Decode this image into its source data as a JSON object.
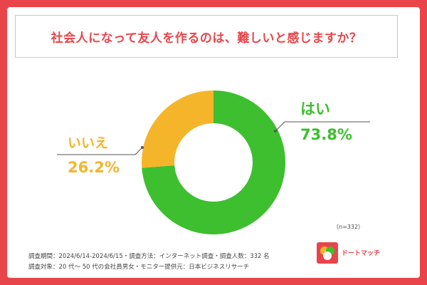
{
  "title": "社会人になって友人を作るのは、難しいと感じますか？",
  "chart_data": {
    "type": "pie",
    "donut": true,
    "slices": [
      {
        "label": "はい",
        "value": 73.8,
        "value_text": "73.8%",
        "color": "#3dbf2f"
      },
      {
        "label": "いいえ",
        "value": 26.2,
        "value_text": "26.2%",
        "color": "#f5b52a"
      }
    ],
    "sample_size": "（n=332）"
  },
  "notes": {
    "line1": "調査期間：2024/6/14-2024/6/15・調査方法：インターネット調査・調査人数：332 名",
    "line2": "調査対象：20 代～ 50 代の会社員男女・モニター提供元：日本ビジネスリサーチ"
  },
  "brand": {
    "name": "ドートマッチ",
    "color": "#e8454a"
  }
}
